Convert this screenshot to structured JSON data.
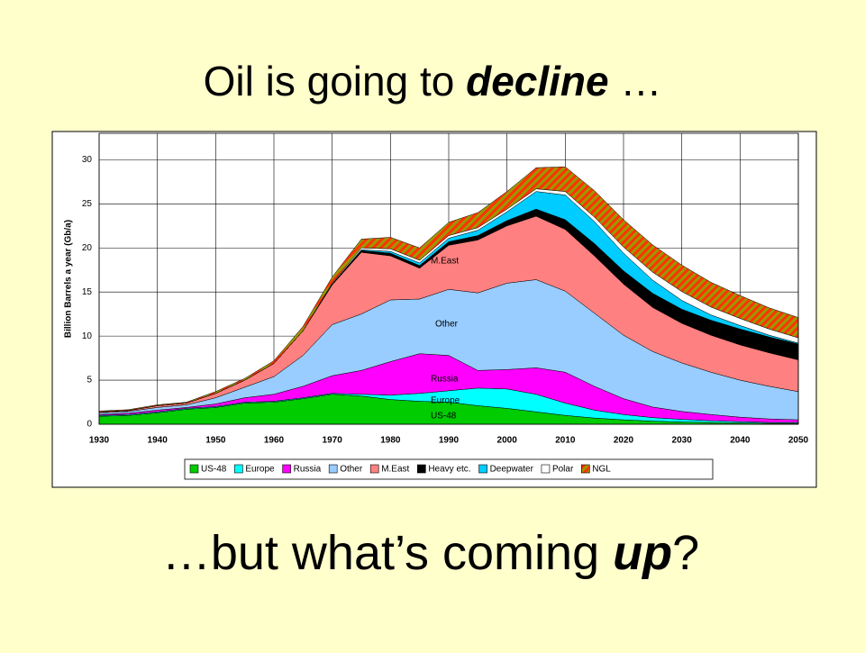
{
  "slide": {
    "title": [
      "Oil is going to ",
      "decline",
      " …"
    ],
    "footer": [
      "…but what’s coming ",
      "up",
      "?"
    ]
  },
  "chart_data": {
    "type": "stacked-area",
    "ylabel": "Billion Barrels a year (Gb/a)",
    "x": [
      1930,
      1935,
      1940,
      1945,
      1950,
      1955,
      1960,
      1965,
      1970,
      1975,
      1980,
      1985,
      1990,
      1995,
      2000,
      2005,
      2010,
      2015,
      2020,
      2025,
      2030,
      2035,
      2040,
      2045,
      2050
    ],
    "xlim": [
      1930,
      2050
    ],
    "xticks": [
      1930,
      1940,
      1950,
      1960,
      1970,
      1980,
      1990,
      2000,
      2010,
      2020,
      2030,
      2040,
      2050
    ],
    "ylim": [
      0,
      33
    ],
    "yticks": [
      0,
      5,
      10,
      15,
      20,
      25,
      30
    ],
    "grid": true,
    "legend": "bottom",
    "series": [
      {
        "name": "US-48",
        "color": "#00cc00",
        "values": [
          0.9,
          1.0,
          1.3,
          1.7,
          1.9,
          2.4,
          2.5,
          2.9,
          3.4,
          3.2,
          2.8,
          2.6,
          2.5,
          2.1,
          1.8,
          1.4,
          1.0,
          0.7,
          0.5,
          0.35,
          0.25,
          0.2,
          0.15,
          0.1,
          0.1
        ]
      },
      {
        "name": "Europe",
        "color": "#00ffff",
        "values": [
          0.1,
          0.1,
          0.1,
          0.1,
          0.1,
          0.1,
          0.1,
          0.1,
          0.1,
          0.2,
          0.5,
          0.9,
          1.3,
          2.0,
          2.2,
          2.0,
          1.4,
          0.9,
          0.6,
          0.4,
          0.3,
          0.2,
          0.15,
          0.1,
          0.1
        ]
      },
      {
        "name": "Russia",
        "color": "#ff00ff",
        "values": [
          0.1,
          0.15,
          0.2,
          0.1,
          0.3,
          0.5,
          0.8,
          1.3,
          2.0,
          2.7,
          3.8,
          4.5,
          4.0,
          2.0,
          2.2,
          3.0,
          3.5,
          2.7,
          1.8,
          1.2,
          0.9,
          0.7,
          0.5,
          0.4,
          0.3
        ]
      },
      {
        "name": "Other",
        "color": "#99ccff",
        "values": [
          0.2,
          0.2,
          0.3,
          0.3,
          0.7,
          1.2,
          2.0,
          3.5,
          5.8,
          6.4,
          7.0,
          6.2,
          7.5,
          8.8,
          9.8,
          10.0,
          9.2,
          8.3,
          7.2,
          6.3,
          5.5,
          4.8,
          4.2,
          3.7,
          3.2
        ]
      },
      {
        "name": "M.East",
        "color": "#ff8080",
        "values": [
          0.1,
          0.1,
          0.2,
          0.2,
          0.5,
          0.8,
          1.5,
          2.8,
          4.5,
          7.0,
          5.0,
          3.5,
          5.0,
          6.0,
          6.5,
          7.2,
          7.0,
          6.5,
          5.8,
          5.0,
          4.5,
          4.2,
          4.0,
          3.8,
          3.6
        ]
      },
      {
        "name": "Heavy etc.",
        "color": "#000000",
        "values": [
          0,
          0,
          0,
          0,
          0,
          0,
          0,
          0,
          0.1,
          0.2,
          0.3,
          0.3,
          0.4,
          0.5,
          0.6,
          0.8,
          1.1,
          1.4,
          1.5,
          1.6,
          1.6,
          1.7,
          1.8,
          1.8,
          1.8
        ]
      },
      {
        "name": "Deepwater",
        "color": "#00ccff",
        "values": [
          0,
          0,
          0,
          0,
          0,
          0,
          0,
          0,
          0,
          0.1,
          0.2,
          0.3,
          0.4,
          0.6,
          1.0,
          2.0,
          2.8,
          2.5,
          2.0,
          1.5,
          1.0,
          0.6,
          0.4,
          0.2,
          0.1
        ]
      },
      {
        "name": "Polar",
        "color": "#ffffff",
        "values": [
          0,
          0,
          0,
          0,
          0,
          0,
          0,
          0,
          0.1,
          0.2,
          0.3,
          0.3,
          0.3,
          0.3,
          0.3,
          0.3,
          0.4,
          0.5,
          0.7,
          0.9,
          1.0,
          0.9,
          0.8,
          0.7,
          0.6
        ]
      },
      {
        "name": "NGL",
        "color": "#999900",
        "values": [
          0.1,
          0.1,
          0.1,
          0.1,
          0.2,
          0.2,
          0.3,
          0.5,
          0.7,
          1.0,
          1.3,
          1.4,
          1.5,
          1.7,
          2.0,
          2.4,
          2.8,
          3.0,
          3.1,
          3.1,
          3.0,
          2.8,
          2.6,
          2.4,
          2.3
        ]
      }
    ]
  }
}
